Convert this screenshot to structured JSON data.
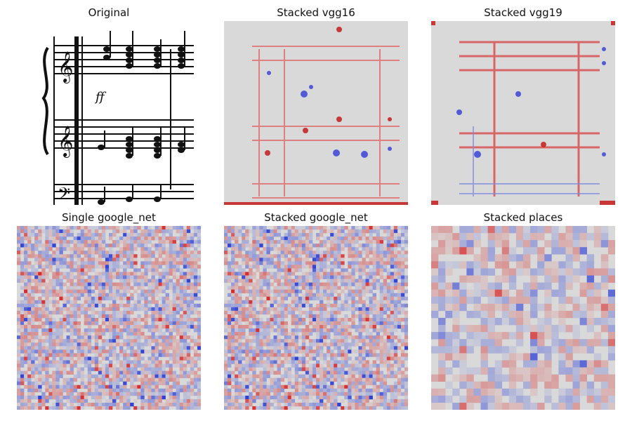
{
  "figure": {
    "panels": [
      {
        "id": "original",
        "title": "Original"
      },
      {
        "id": "stacked-vgg16",
        "title": "Stacked vgg16"
      },
      {
        "id": "stacked-vgg19",
        "title": "Stacked vgg19"
      },
      {
        "id": "single-google-net",
        "title": "Single google_net"
      },
      {
        "id": "stacked-google-net",
        "title": "Stacked google_net"
      },
      {
        "id": "stacked-places",
        "title": "Stacked places"
      }
    ]
  },
  "colors": {
    "background_gray": "#d9d9d9",
    "positive_red": "#d7191c",
    "negative_blue": "#2c3fd6",
    "ink": "#111111"
  }
}
